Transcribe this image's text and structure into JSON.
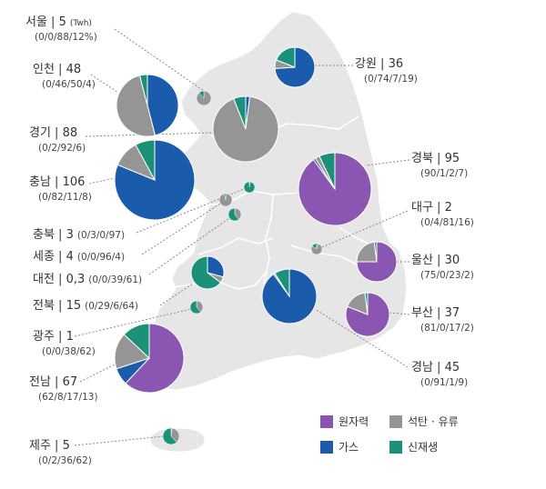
{
  "colors": {
    "nuclear": "#8b56b1",
    "coal_oil": "#959595",
    "gas": "#1a5cab",
    "renewable": "#1a9178",
    "map_fill": "#e6e6e6",
    "map_border": "#ffffff",
    "leader": "#8a8a8a"
  },
  "unit_label": "(Twh)",
  "legend": {
    "nuclear": "원자력",
    "coal_oil": "석탄 · 유류",
    "gas": "가스",
    "renewable": "신재생"
  },
  "chart_data": {
    "type": "pie",
    "series_order": [
      "nuclear",
      "gas",
      "coal_oil",
      "renewable"
    ],
    "regions": [
      {
        "id": "seoul",
        "name": "서울",
        "total": "5",
        "shares": "(0/0/88/12%)",
        "values": [
          0,
          0,
          88,
          12
        ]
      },
      {
        "id": "incheon",
        "name": "인천",
        "total": "48",
        "shares": "(0/46/50/4)",
        "values": [
          0,
          46,
          50,
          4
        ]
      },
      {
        "id": "gyeonggi",
        "name": "경기",
        "total": "88",
        "shares": "(0/2/92/6)",
        "values": [
          0,
          2,
          92,
          6
        ]
      },
      {
        "id": "chungnam",
        "name": "충남",
        "total": "106",
        "shares": "(0/82/11/8)",
        "values": [
          0,
          82,
          11,
          8
        ]
      },
      {
        "id": "chungbuk",
        "name": "충북",
        "total": "3",
        "shares": "(0/3/0/97)",
        "values": [
          0,
          3,
          0,
          97
        ]
      },
      {
        "id": "sejong",
        "name": "세종",
        "total": "4",
        "shares": "(0/0/96/4)",
        "values": [
          0,
          0,
          96,
          4
        ]
      },
      {
        "id": "daejeon",
        "name": "대전",
        "total": "0,3",
        "shares": "(0/0/39/61)",
        "values": [
          0,
          0,
          39,
          61
        ]
      },
      {
        "id": "jeonbuk",
        "name": "전북",
        "total": "15",
        "shares": "(0/29/6/64)",
        "values": [
          0,
          29,
          6,
          64
        ]
      },
      {
        "id": "gwangju",
        "name": "광주",
        "total": "1",
        "shares": "(0/0/38/62)",
        "values": [
          0,
          0,
          38,
          62
        ]
      },
      {
        "id": "jeonnam",
        "name": "전남",
        "total": "67",
        "shares": "(62/8/17/13)",
        "values": [
          62,
          8,
          17,
          13
        ]
      },
      {
        "id": "jeju",
        "name": "제주",
        "total": "5",
        "shares": "(0/2/36/62)",
        "values": [
          0,
          2,
          36,
          62
        ]
      },
      {
        "id": "gangwon",
        "name": "강원",
        "total": "36",
        "shares": "(0/74/7/19)",
        "values": [
          0,
          74,
          7,
          19
        ]
      },
      {
        "id": "gyeongbuk",
        "name": "경북",
        "total": "95",
        "shares": "(90/1/2/7)",
        "values": [
          90,
          1,
          2,
          7
        ]
      },
      {
        "id": "daegu",
        "name": "대구",
        "total": "2",
        "shares": "(0/4/81/16)",
        "values": [
          0,
          4,
          81,
          16
        ]
      },
      {
        "id": "ulsan",
        "name": "울산",
        "total": "30",
        "shares": "(75/0/23/2)",
        "values": [
          75,
          0,
          23,
          2
        ]
      },
      {
        "id": "busan",
        "name": "부산",
        "total": "37",
        "shares": "(81/0/17/2)",
        "values": [
          81,
          0,
          17,
          2
        ]
      },
      {
        "id": "gyeongnam",
        "name": "경남",
        "total": "45",
        "shares": "(0/91/1/9)",
        "values": [
          0,
          91,
          1,
          9
        ]
      }
    ]
  }
}
